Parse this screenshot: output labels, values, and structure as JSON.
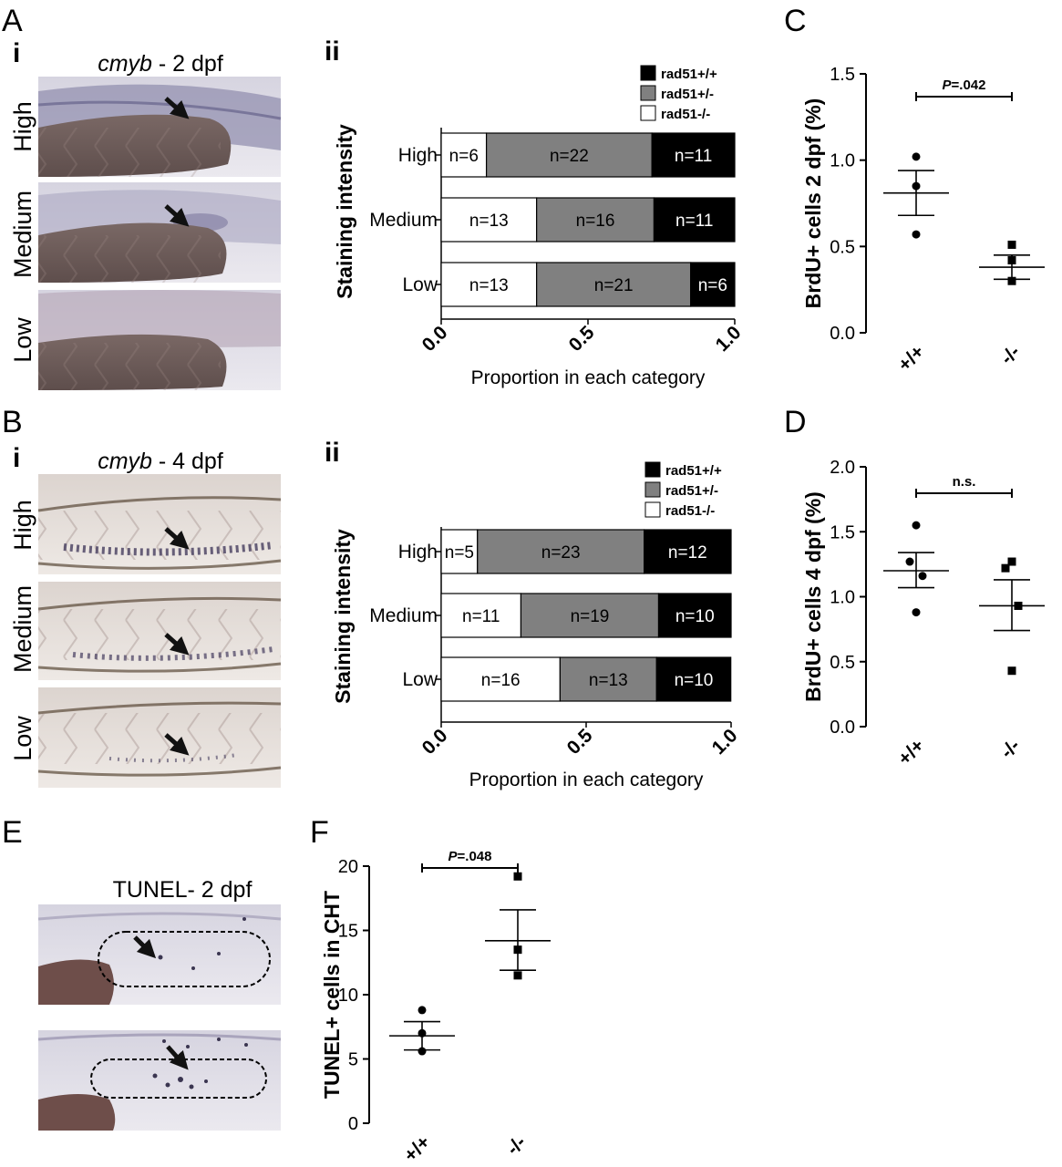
{
  "panels": {
    "A": {
      "letter": "A",
      "i": {
        "roman": "i",
        "title_italic": "cmyb",
        "title_rest": " - 2 dpf",
        "rows": [
          "High",
          "Medium",
          "Low"
        ]
      },
      "ii": {
        "roman": "ii"
      }
    },
    "B": {
      "letter": "B",
      "i": {
        "roman": "i",
        "title_italic": "cmyb",
        "title_rest": " - 4 dpf",
        "rows": [
          "High",
          "Medium",
          "Low"
        ]
      },
      "ii": {
        "roman": "ii"
      }
    },
    "C": {
      "letter": "C"
    },
    "D": {
      "letter": "D"
    },
    "E": {
      "letter": "E",
      "title": "TUNEL- 2 dpf"
    },
    "F": {
      "letter": "F"
    }
  },
  "colors": {
    "rad51_wt": "#000000",
    "rad51_het": "#808080",
    "rad51_mut": "#ffffff",
    "embryo_purple": "#8e8aa8",
    "embryo_brown": "#8a7570"
  },
  "chart_data": [
    {
      "id": "Aii",
      "type": "bar",
      "orientation": "horizontal",
      "stacked": true,
      "categories": [
        "High",
        "Medium",
        "Low"
      ],
      "series": [
        {
          "name": "rad51-/-",
          "labels": [
            "n=6",
            "n=13",
            "n=13"
          ],
          "values": [
            0.154,
            0.325,
            0.325
          ]
        },
        {
          "name": "rad51+/-",
          "labels": [
            "n=22",
            "n=16",
            "n=21"
          ],
          "values": [
            0.564,
            0.4,
            0.525
          ]
        },
        {
          "name": "rad51+/+",
          "labels": [
            "n=11",
            "n=11",
            "n=6"
          ],
          "values": [
            0.282,
            0.275,
            0.15
          ]
        }
      ],
      "legend_order": [
        "rad51+/+",
        "rad51+/-",
        "rad51-/-"
      ],
      "legend_position": "top-right",
      "xlabel": "Proportion in each category",
      "ylabel": "Staining intensity",
      "xticks": [
        "0.0",
        "0.5",
        "1.0"
      ],
      "xlim": [
        0,
        1
      ]
    },
    {
      "id": "Bii",
      "type": "bar",
      "orientation": "horizontal",
      "stacked": true,
      "categories": [
        "High",
        "Medium",
        "Low"
      ],
      "series": [
        {
          "name": "rad51-/-",
          "labels": [
            "n=5",
            "n=11",
            "n=16"
          ],
          "values": [
            0.125,
            0.275,
            0.41
          ]
        },
        {
          "name": "rad51+/-",
          "labels": [
            "n=23",
            "n=19",
            "n=13"
          ],
          "values": [
            0.575,
            0.475,
            0.333
          ]
        },
        {
          "name": "rad51+/+",
          "labels": [
            "n=12",
            "n=10",
            "n=10"
          ],
          "values": [
            0.3,
            0.25,
            0.256
          ]
        }
      ],
      "legend_order": [
        "rad51+/+",
        "rad51+/-",
        "rad51-/-"
      ],
      "legend_position": "top-right",
      "xlabel": "Proportion in each category",
      "ylabel": "Staining intensity",
      "xticks": [
        "0.0",
        "0.5",
        "1.0"
      ],
      "xlim": [
        0,
        1
      ]
    },
    {
      "id": "C",
      "type": "scatter",
      "categories": [
        "+/+",
        "-/-"
      ],
      "groups": [
        {
          "category": "+/+",
          "marker": "circle",
          "points": [
            1.02,
            0.85,
            0.57
          ],
          "mean": 0.81,
          "sem": [
            0.68,
            0.94
          ]
        },
        {
          "category": "-/-",
          "marker": "square",
          "points": [
            0.51,
            0.42,
            0.3
          ],
          "mean": 0.38,
          "sem": [
            0.31,
            0.45
          ]
        }
      ],
      "ylabel": "BrdU+ cells 2 dpf (%)",
      "yticks": [
        "0.0",
        "0.5",
        "1.0",
        "1.5"
      ],
      "ylim": [
        0,
        1.5
      ],
      "significance_prefix": "P",
      "significance_value": "=.042"
    },
    {
      "id": "D",
      "type": "scatter",
      "categories": [
        "+/+",
        "-/-"
      ],
      "groups": [
        {
          "category": "+/+",
          "marker": "circle",
          "points": [
            1.55,
            1.27,
            1.16,
            0.88
          ],
          "mean": 1.2,
          "sem": [
            1.07,
            1.34
          ]
        },
        {
          "category": "-/-",
          "marker": "square",
          "points": [
            1.27,
            1.22,
            0.93,
            0.43
          ],
          "mean": 0.93,
          "sem": [
            0.74,
            1.13
          ]
        }
      ],
      "ylabel": "BrdU+ cells 4 dpf (%)",
      "yticks": [
        "0.0",
        "0.5",
        "1.0",
        "1.5",
        "2.0"
      ],
      "ylim": [
        0,
        2
      ],
      "significance_prefix": "",
      "significance_value": "n.s."
    },
    {
      "id": "F",
      "type": "scatter",
      "categories": [
        "+/+",
        "-/-"
      ],
      "groups": [
        {
          "category": "+/+",
          "marker": "circle",
          "points": [
            8.8,
            7.0,
            5.6
          ],
          "mean": 6.8,
          "sem": [
            5.7,
            7.9
          ]
        },
        {
          "category": "-/-",
          "marker": "square",
          "points": [
            19.2,
            13.5,
            11.5
          ],
          "mean": 14.2,
          "sem": [
            11.9,
            16.6
          ]
        }
      ],
      "ylabel": "TUNEL+ cells in CHT",
      "yticks": [
        "0",
        "5",
        "10",
        "15",
        "20"
      ],
      "ylim": [
        0,
        20
      ],
      "significance_prefix": "P",
      "significance_value": "=.048"
    }
  ]
}
